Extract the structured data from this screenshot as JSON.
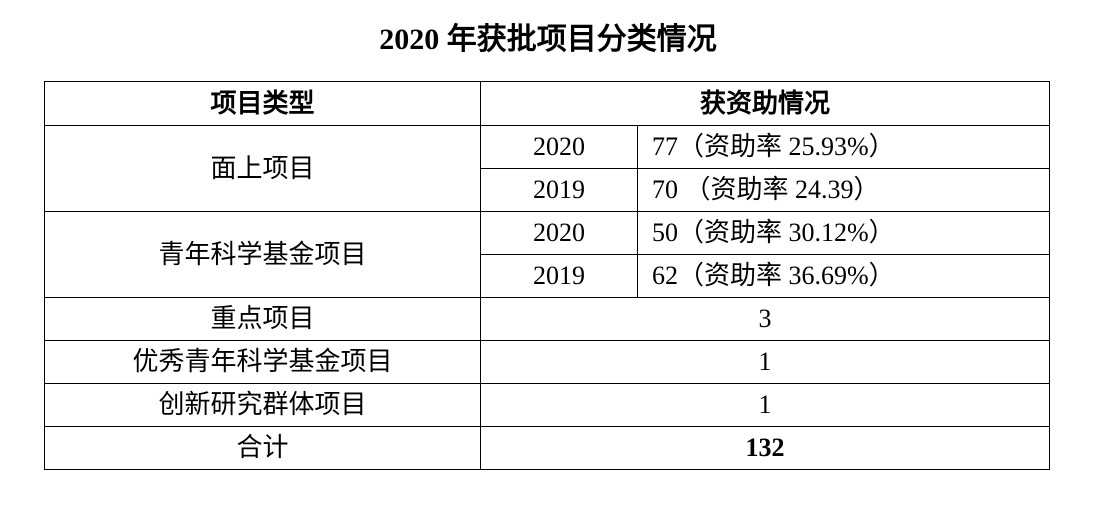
{
  "title": "2020 年获批项目分类情况",
  "headers": [
    "项目类型",
    "获资助情况"
  ],
  "rows": [
    {
      "type": "面上项目",
      "years": [
        {
          "year": "2020",
          "value": "77（资助率 25.93%）"
        },
        {
          "year": "2019",
          "value": "70 （资助率 24.39）"
        }
      ]
    },
    {
      "type": "青年科学基金项目",
      "years": [
        {
          "year": "2020",
          "value": "50（资助率 30.12%）"
        },
        {
          "year": "2019",
          "value": "62（资助率 36.69%）"
        }
      ]
    }
  ],
  "simple_rows": [
    {
      "type": "重点项目",
      "value": "3"
    },
    {
      "type": "优秀青年科学基金项目",
      "value": "1"
    },
    {
      "type": "创新研究群体项目",
      "value": "1"
    }
  ],
  "total": {
    "label": "合计",
    "value": "132"
  }
}
